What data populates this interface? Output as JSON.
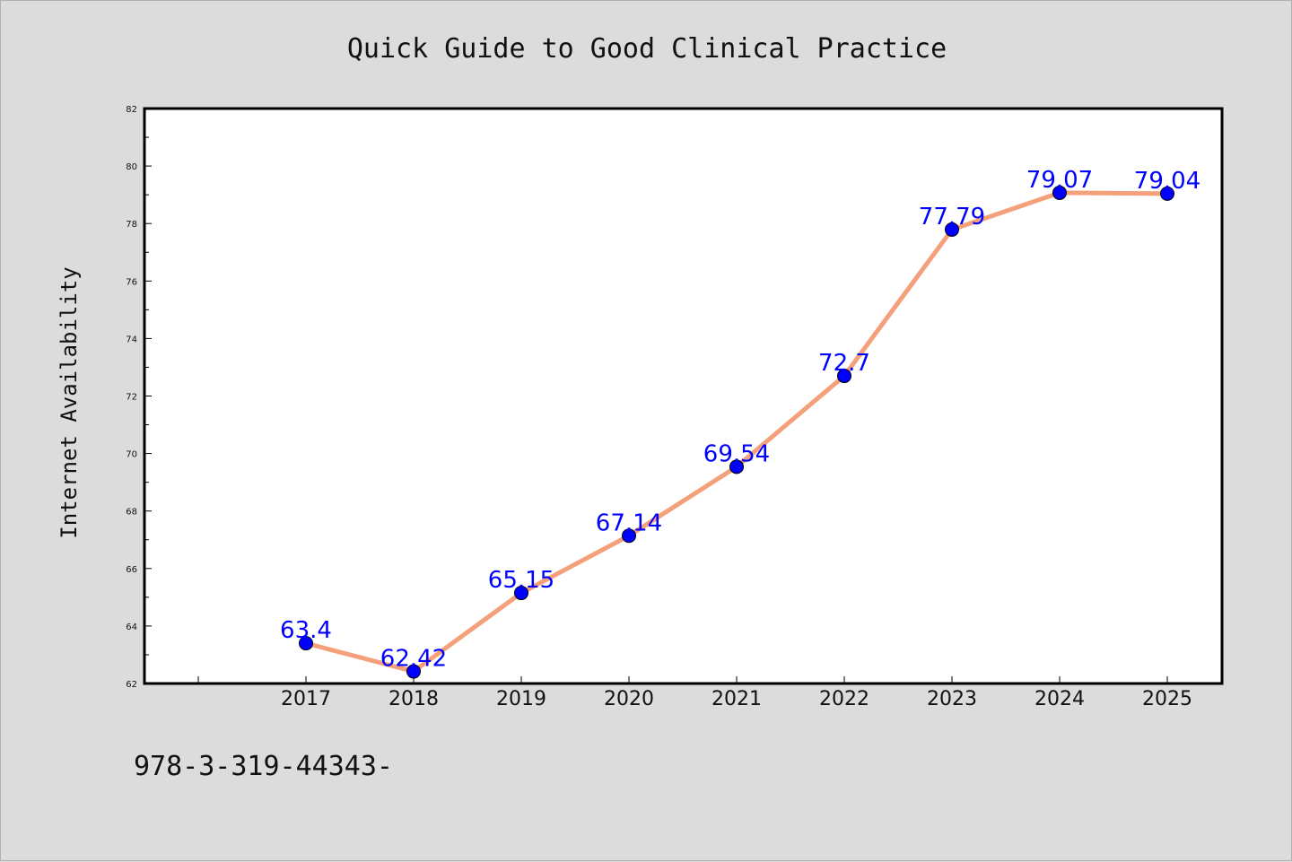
{
  "chart_data": {
    "type": "line",
    "title": "Quick Guide to Good Clinical Practice",
    "ylabel": "Internet Availability",
    "xlabel": "",
    "categories": [
      "2017",
      "2018",
      "2019",
      "2020",
      "2021",
      "2022",
      "2023",
      "2024",
      "2025"
    ],
    "series": [
      {
        "values": [
          63.4,
          62.42,
          65.15,
          67.14,
          69.54,
          72.7,
          77.79,
          79.07,
          79.04
        ],
        "labels": [
          "63.4",
          "62.42",
          "65.15",
          "67.14",
          "69.54",
          "72.7",
          "77.79",
          "79.07",
          "79.04"
        ],
        "line_color": "#f4a07a",
        "marker_color": "#0000ff"
      }
    ],
    "ylim": [
      62,
      82
    ],
    "yticks": [
      "62",
      "64",
      "66",
      "68",
      "70",
      "72",
      "74",
      "76",
      "78",
      "80",
      "82"
    ],
    "grid": false,
    "legend": "none"
  },
  "footer_text": "978-3-319-44343-"
}
